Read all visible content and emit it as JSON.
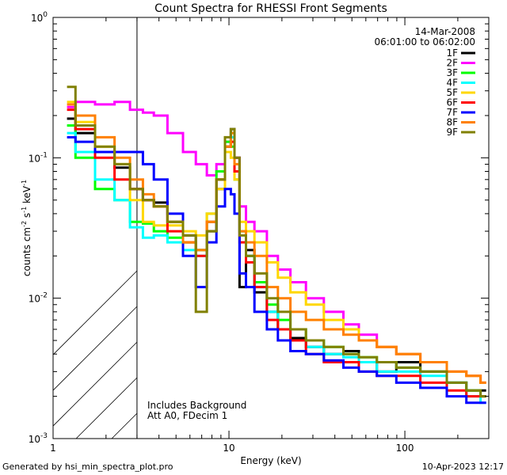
{
  "chart_data": {
    "type": "line",
    "title": "Count Spectra for RHESSI Front Segments",
    "xlabel": "Energy (keV)",
    "ylabel": "counts cm-2 s-1 keV-1",
    "x_scale": "log",
    "y_scale": "log",
    "xlim": [
      1,
      300
    ],
    "ylim": [
      0.001,
      1
    ],
    "x_ticks": [
      {
        "value": 1,
        "label": "1"
      },
      {
        "value": 10,
        "label": "10"
      },
      {
        "value": 100,
        "label": "100"
      }
    ],
    "y_ticks": [
      {
        "value": 0.001,
        "base": "10",
        "exp": "-3"
      },
      {
        "value": 0.01,
        "base": "10",
        "exp": "-2"
      },
      {
        "value": 0.1,
        "base": "10",
        "exp": "-1"
      },
      {
        "value": 1,
        "base": "10",
        "exp": "0"
      }
    ],
    "date": "14-Mar-2008",
    "time_range": "06:01:00 to 06:02:00",
    "excluded_region_upper_keV": 3,
    "annotations": [
      "Includes Background",
      "Att A0, FDecim 1"
    ],
    "series": [
      {
        "name": "1F",
        "color": "#000000",
        "points": [
          [
            1.2,
            0.19
          ],
          [
            1.5,
            0.15
          ],
          [
            2,
            0.11
          ],
          [
            2.5,
            0.085
          ],
          [
            3,
            0.06
          ],
          [
            3.5,
            0.05
          ],
          [
            4,
            0.048
          ],
          [
            5,
            0.035
          ],
          [
            6,
            0.028
          ],
          [
            7,
            0.022
          ],
          [
            8,
            0.03
          ],
          [
            9,
            0.06
          ],
          [
            10,
            0.12
          ],
          [
            10.5,
            0.16
          ],
          [
            11,
            0.1
          ],
          [
            12,
            0.012
          ],
          [
            13,
            0.022
          ],
          [
            15,
            0.011
          ],
          [
            18,
            0.008
          ],
          [
            20,
            0.006
          ],
          [
            25,
            0.0052
          ],
          [
            30,
            0.0045
          ],
          [
            40,
            0.004
          ],
          [
            50,
            0.0042
          ],
          [
            60,
            0.0035
          ],
          [
            80,
            0.003
          ],
          [
            100,
            0.0035
          ],
          [
            150,
            0.003
          ],
          [
            200,
            0.0025
          ],
          [
            250,
            0.0022
          ],
          [
            290,
            0.0022
          ]
        ]
      },
      {
        "name": "2F",
        "color": "#ff00ff",
        "points": [
          [
            1.2,
            0.23
          ],
          [
            1.5,
            0.25
          ],
          [
            2,
            0.24
          ],
          [
            2.5,
            0.25
          ],
          [
            3,
            0.22
          ],
          [
            3.5,
            0.21
          ],
          [
            4,
            0.2
          ],
          [
            5,
            0.15
          ],
          [
            6,
            0.11
          ],
          [
            7,
            0.09
          ],
          [
            8,
            0.075
          ],
          [
            9,
            0.09
          ],
          [
            10,
            0.13
          ],
          [
            10.5,
            0.14
          ],
          [
            11,
            0.1
          ],
          [
            12,
            0.045
          ],
          [
            13,
            0.035
          ],
          [
            15,
            0.03
          ],
          [
            18,
            0.02
          ],
          [
            20,
            0.016
          ],
          [
            25,
            0.013
          ],
          [
            30,
            0.01
          ],
          [
            40,
            0.008
          ],
          [
            50,
            0.0065
          ],
          [
            60,
            0.0055
          ],
          [
            80,
            0.0045
          ],
          [
            100,
            0.004
          ],
          [
            150,
            0.0035
          ],
          [
            200,
            0.003
          ],
          [
            250,
            0.0028
          ],
          [
            290,
            0.0025
          ]
        ]
      },
      {
        "name": "3F",
        "color": "#00ff00",
        "points": [
          [
            1.2,
            0.17
          ],
          [
            1.5,
            0.1
          ],
          [
            2,
            0.06
          ],
          [
            2.5,
            0.05
          ],
          [
            3,
            0.035
          ],
          [
            3.5,
            0.034
          ],
          [
            4,
            0.03
          ],
          [
            5,
            0.027
          ],
          [
            6,
            0.025
          ],
          [
            7,
            0.022
          ],
          [
            8,
            0.04
          ],
          [
            9,
            0.08
          ],
          [
            10,
            0.13
          ],
          [
            10.5,
            0.12
          ],
          [
            11,
            0.07
          ],
          [
            12,
            0.03
          ],
          [
            13,
            0.02
          ],
          [
            15,
            0.013
          ],
          [
            18,
            0.009
          ],
          [
            20,
            0.007
          ],
          [
            25,
            0.006
          ],
          [
            30,
            0.005
          ],
          [
            40,
            0.0045
          ],
          [
            50,
            0.004
          ],
          [
            60,
            0.0038
          ],
          [
            80,
            0.0035
          ],
          [
            100,
            0.0032
          ],
          [
            150,
            0.003
          ],
          [
            200,
            0.0025
          ],
          [
            250,
            0.0022
          ],
          [
            290,
            0.002
          ]
        ]
      },
      {
        "name": "4F",
        "color": "#00ffff",
        "points": [
          [
            1.2,
            0.15
          ],
          [
            1.5,
            0.11
          ],
          [
            2,
            0.07
          ],
          [
            2.5,
            0.05
          ],
          [
            3,
            0.032
          ],
          [
            3.5,
            0.027
          ],
          [
            4,
            0.028
          ],
          [
            5,
            0.025
          ],
          [
            6,
            0.022
          ],
          [
            7,
            0.02
          ],
          [
            8,
            0.035
          ],
          [
            9,
            0.07
          ],
          [
            10,
            0.12
          ],
          [
            10.5,
            0.14
          ],
          [
            11,
            0.08
          ],
          [
            12,
            0.03
          ],
          [
            13,
            0.02
          ],
          [
            15,
            0.012
          ],
          [
            18,
            0.008
          ],
          [
            20,
            0.006
          ],
          [
            25,
            0.005
          ],
          [
            30,
            0.0045
          ],
          [
            40,
            0.004
          ],
          [
            50,
            0.0038
          ],
          [
            60,
            0.0035
          ],
          [
            80,
            0.003
          ],
          [
            100,
            0.003
          ],
          [
            150,
            0.0028
          ],
          [
            200,
            0.0025
          ],
          [
            250,
            0.002
          ],
          [
            290,
            0.0018
          ]
        ]
      },
      {
        "name": "5F",
        "color": "#ffd700",
        "points": [
          [
            1.2,
            0.25
          ],
          [
            1.5,
            0.18
          ],
          [
            2,
            0.12
          ],
          [
            2.5,
            0.09
          ],
          [
            3,
            0.05
          ],
          [
            3.5,
            0.035
          ],
          [
            4,
            0.033
          ],
          [
            5,
            0.033
          ],
          [
            6,
            0.03
          ],
          [
            7,
            0.028
          ],
          [
            8,
            0.04
          ],
          [
            9,
            0.06
          ],
          [
            10,
            0.11
          ],
          [
            10.5,
            0.1
          ],
          [
            11,
            0.07
          ],
          [
            12,
            0.035
          ],
          [
            13,
            0.03
          ],
          [
            15,
            0.025
          ],
          [
            18,
            0.018
          ],
          [
            20,
            0.014
          ],
          [
            25,
            0.011
          ],
          [
            30,
            0.009
          ],
          [
            40,
            0.007
          ],
          [
            50,
            0.006
          ],
          [
            60,
            0.005
          ],
          [
            80,
            0.0045
          ],
          [
            100,
            0.004
          ],
          [
            150,
            0.0035
          ],
          [
            200,
            0.003
          ],
          [
            250,
            0.0028
          ],
          [
            290,
            0.0025
          ]
        ]
      },
      {
        "name": "6F",
        "color": "#ff0000",
        "points": [
          [
            1.2,
            0.22
          ],
          [
            1.5,
            0.16
          ],
          [
            2,
            0.1
          ],
          [
            2.5,
            0.07
          ],
          [
            3,
            0.06
          ],
          [
            3.5,
            0.05
          ],
          [
            4,
            0.045
          ],
          [
            5,
            0.03
          ],
          [
            6,
            0.025
          ],
          [
            7,
            0.02
          ],
          [
            8,
            0.035
          ],
          [
            9,
            0.07
          ],
          [
            10,
            0.12
          ],
          [
            10.5,
            0.13
          ],
          [
            11,
            0.08
          ],
          [
            12,
            0.025
          ],
          [
            13,
            0.018
          ],
          [
            15,
            0.012
          ],
          [
            18,
            0.007
          ],
          [
            20,
            0.006
          ],
          [
            25,
            0.005
          ],
          [
            30,
            0.004
          ],
          [
            40,
            0.0035
          ],
          [
            50,
            0.0035
          ],
          [
            60,
            0.003
          ],
          [
            80,
            0.0028
          ],
          [
            100,
            0.0028
          ],
          [
            150,
            0.0025
          ],
          [
            200,
            0.0022
          ],
          [
            250,
            0.002
          ],
          [
            290,
            0.002
          ]
        ]
      },
      {
        "name": "7F",
        "color": "#0000ff",
        "points": [
          [
            1.2,
            0.14
          ],
          [
            1.5,
            0.13
          ],
          [
            2,
            0.11
          ],
          [
            2.5,
            0.11
          ],
          [
            3,
            0.11
          ],
          [
            3.5,
            0.09
          ],
          [
            4,
            0.07
          ],
          [
            5,
            0.04
          ],
          [
            6,
            0.02
          ],
          [
            7,
            0.012
          ],
          [
            8,
            0.025
          ],
          [
            9,
            0.045
          ],
          [
            10,
            0.06
          ],
          [
            10.5,
            0.055
          ],
          [
            11,
            0.04
          ],
          [
            12,
            0.015
          ],
          [
            13,
            0.012
          ],
          [
            15,
            0.008
          ],
          [
            18,
            0.006
          ],
          [
            20,
            0.005
          ],
          [
            25,
            0.0042
          ],
          [
            30,
            0.004
          ],
          [
            40,
            0.0036
          ],
          [
            50,
            0.0032
          ],
          [
            60,
            0.003
          ],
          [
            80,
            0.0028
          ],
          [
            100,
            0.0025
          ],
          [
            150,
            0.0023
          ],
          [
            200,
            0.002
          ],
          [
            250,
            0.0018
          ],
          [
            290,
            0.0018
          ]
        ]
      },
      {
        "name": "8F",
        "color": "#ff8000",
        "points": [
          [
            1.2,
            0.24
          ],
          [
            1.5,
            0.2
          ],
          [
            2,
            0.14
          ],
          [
            2.5,
            0.1
          ],
          [
            3,
            0.07
          ],
          [
            3.5,
            0.055
          ],
          [
            4,
            0.045
          ],
          [
            5,
            0.035
          ],
          [
            6,
            0.025
          ],
          [
            7,
            0.022
          ],
          [
            8,
            0.035
          ],
          [
            9,
            0.07
          ],
          [
            10,
            0.12
          ],
          [
            10.5,
            0.15
          ],
          [
            11,
            0.09
          ],
          [
            12,
            0.03
          ],
          [
            13,
            0.025
          ],
          [
            15,
            0.02
          ],
          [
            18,
            0.012
          ],
          [
            20,
            0.01
          ],
          [
            25,
            0.008
          ],
          [
            30,
            0.007
          ],
          [
            40,
            0.006
          ],
          [
            50,
            0.0055
          ],
          [
            60,
            0.005
          ],
          [
            80,
            0.0045
          ],
          [
            100,
            0.004
          ],
          [
            150,
            0.0035
          ],
          [
            200,
            0.003
          ],
          [
            250,
            0.0028
          ],
          [
            290,
            0.0025
          ]
        ]
      },
      {
        "name": "9F",
        "color": "#808000",
        "points": [
          [
            1.2,
            0.32
          ],
          [
            1.5,
            0.17
          ],
          [
            2,
            0.12
          ],
          [
            2.5,
            0.09
          ],
          [
            3,
            0.06
          ],
          [
            3.5,
            0.05
          ],
          [
            4,
            0.045
          ],
          [
            5,
            0.035
          ],
          [
            6,
            0.028
          ],
          [
            7,
            0.008
          ],
          [
            8,
            0.03
          ],
          [
            9,
            0.07
          ],
          [
            10,
            0.14
          ],
          [
            10.5,
            0.16
          ],
          [
            11,
            0.1
          ],
          [
            12,
            0.028
          ],
          [
            13,
            0.02
          ],
          [
            15,
            0.015
          ],
          [
            18,
            0.01
          ],
          [
            20,
            0.008
          ],
          [
            25,
            0.006
          ],
          [
            30,
            0.005
          ],
          [
            40,
            0.0045
          ],
          [
            50,
            0.004
          ],
          [
            60,
            0.0038
          ],
          [
            80,
            0.0035
          ],
          [
            100,
            0.0032
          ],
          [
            150,
            0.003
          ],
          [
            200,
            0.0025
          ],
          [
            250,
            0.0022
          ],
          [
            290,
            0.002
          ]
        ]
      }
    ]
  },
  "footer": {
    "generated_by": "Generated by hsi_min_spectra_plot.pro",
    "timestamp": "10-Apr-2023 12:17"
  }
}
